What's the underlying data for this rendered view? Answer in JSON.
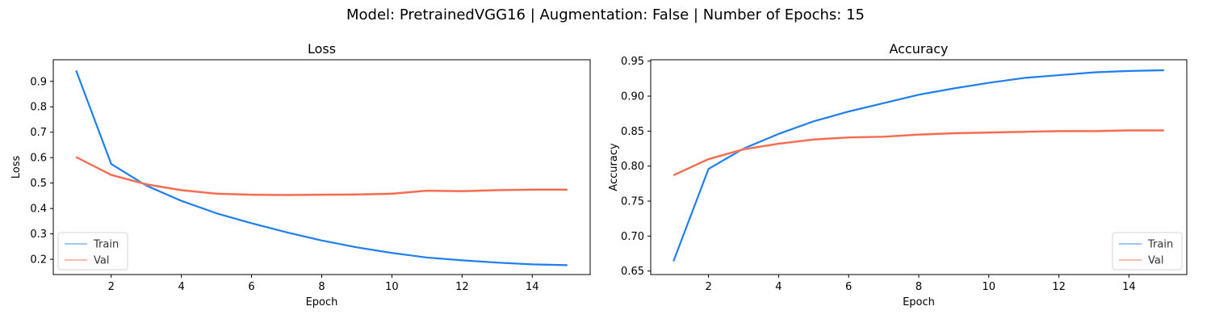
{
  "suptitle": "Model: PretrainedVGG16 | Augmentation: False | Number of Epochs: 15",
  "colors": {
    "train": "#1f7ff0",
    "val": "#f46a4e",
    "train_band": "#9cc7f4",
    "val_band": "#f8bcb0"
  },
  "chart_data": [
    {
      "type": "line",
      "title": "Loss",
      "xlabel": "Epoch",
      "ylabel": "Loss",
      "xlim": [
        0.35,
        15.65
      ],
      "ylim": [
        0.14,
        0.985
      ],
      "xticks": [
        2,
        4,
        6,
        8,
        10,
        12,
        14
      ],
      "yticks": [
        0.2,
        0.3,
        0.4,
        0.5,
        0.6,
        0.7,
        0.8,
        0.9
      ],
      "ytick_labels": [
        "0.2",
        "0.3",
        "0.4",
        "0.5",
        "0.6",
        "0.7",
        "0.8",
        "0.9"
      ],
      "legend": "lower-left",
      "grid": false,
      "x": [
        1,
        2,
        3,
        4,
        5,
        6,
        7,
        8,
        9,
        10,
        11,
        12,
        13,
        14,
        15
      ],
      "series": [
        {
          "name": "Train",
          "values": [
            0.943,
            0.575,
            0.49,
            0.43,
            0.381,
            0.342,
            0.306,
            0.274,
            0.247,
            0.225,
            0.207,
            0.196,
            0.187,
            0.18,
            0.177
          ]
        },
        {
          "name": "Val",
          "values": [
            0.602,
            0.532,
            0.495,
            0.472,
            0.458,
            0.454,
            0.453,
            0.454,
            0.455,
            0.458,
            0.47,
            0.468,
            0.472,
            0.474,
            0.474
          ]
        }
      ]
    },
    {
      "type": "line",
      "title": "Accuracy",
      "xlabel": "Epoch",
      "ylabel": "Accuracy",
      "xlim": [
        0.35,
        15.65
      ],
      "ylim": [
        0.645,
        0.952
      ],
      "xticks": [
        2,
        4,
        6,
        8,
        10,
        12,
        14
      ],
      "yticks": [
        0.65,
        0.7,
        0.75,
        0.8,
        0.85,
        0.9,
        0.95
      ],
      "ytick_labels": [
        "0.65",
        "0.70",
        "0.75",
        "0.80",
        "0.85",
        "0.90",
        "0.95"
      ],
      "legend": "lower-right",
      "grid": false,
      "x": [
        1,
        2,
        3,
        4,
        5,
        6,
        7,
        8,
        9,
        10,
        11,
        12,
        13,
        14,
        15
      ],
      "series": [
        {
          "name": "Train",
          "values": [
            0.664,
            0.796,
            0.825,
            0.846,
            0.864,
            0.878,
            0.89,
            0.902,
            0.911,
            0.919,
            0.926,
            0.93,
            0.934,
            0.936,
            0.937
          ]
        },
        {
          "name": "Val",
          "values": [
            0.787,
            0.81,
            0.824,
            0.832,
            0.838,
            0.841,
            0.842,
            0.845,
            0.847,
            0.848,
            0.849,
            0.85,
            0.85,
            0.851,
            0.851
          ]
        }
      ]
    }
  ]
}
